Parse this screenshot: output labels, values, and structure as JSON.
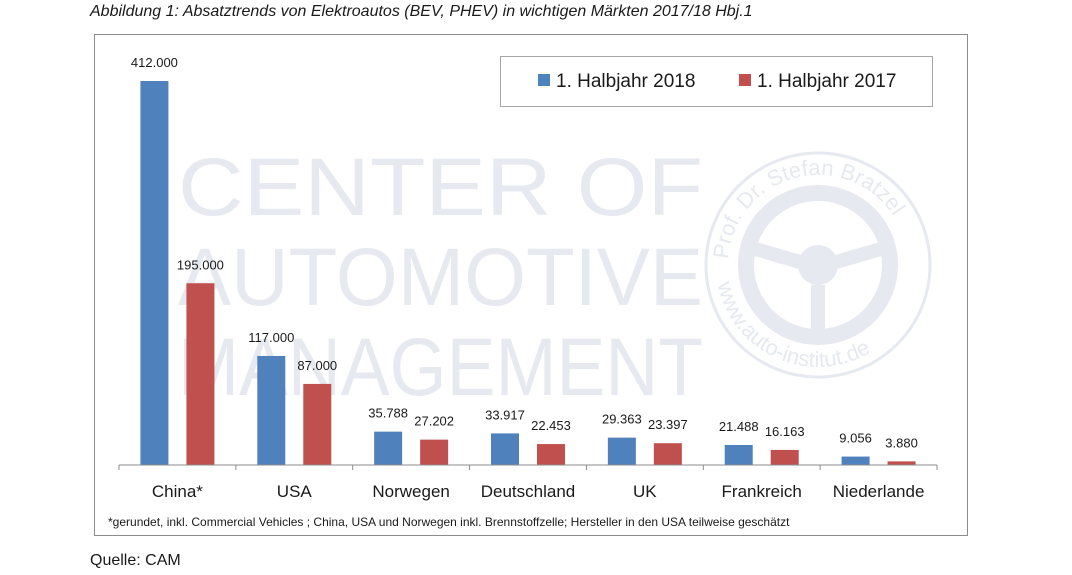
{
  "caption": "Abbildung 1: Absatztrends von Elektroautos (BEV, PHEV) in wichtigen Märkten 2017/18 Hbj.1",
  "footnote": "*gerundet, inkl. Commercial Vehicles ; China, USA und Norwegen inkl. Brennstoffzelle; Hersteller in den USA teilweise geschätzt",
  "source": "Quelle: CAM",
  "watermark": {
    "lines": [
      "CENTER OF",
      "AUTOMOTIVE",
      "MANAGEMENT"
    ],
    "seal_text_top": "Prof. Dr. Stefan Bratzel",
    "seal_text_bottom": "www.auto-institut.de",
    "color": "#e6e9ef"
  },
  "colors": {
    "series_2018": "#4f81bd",
    "series_2017": "#c0504d"
  },
  "chart_data": {
    "type": "bar",
    "title": "",
    "xlabel": "",
    "ylabel": "",
    "ylim": [
      0,
      420000
    ],
    "categories": [
      "China*",
      "USA",
      "Norwegen",
      "Deutschland",
      "UK",
      "Frankreich",
      "Niederlande"
    ],
    "series": [
      {
        "name": "1. Halbjahr 2018",
        "values": [
          412000,
          117000,
          35788,
          33917,
          29363,
          21488,
          9056
        ],
        "labels": [
          "412.000",
          "117.000",
          "35.788",
          "33.917",
          "29.363",
          "21.488",
          "9.056"
        ]
      },
      {
        "name": "1. Halbjahr 2017",
        "values": [
          195000,
          87000,
          27202,
          22453,
          23397,
          16163,
          3880
        ],
        "labels": [
          "195.000",
          "87.000",
          "27.202",
          "22.453",
          "23.397",
          "16.163",
          "3.880"
        ]
      }
    ],
    "legend_position": "top-right"
  }
}
